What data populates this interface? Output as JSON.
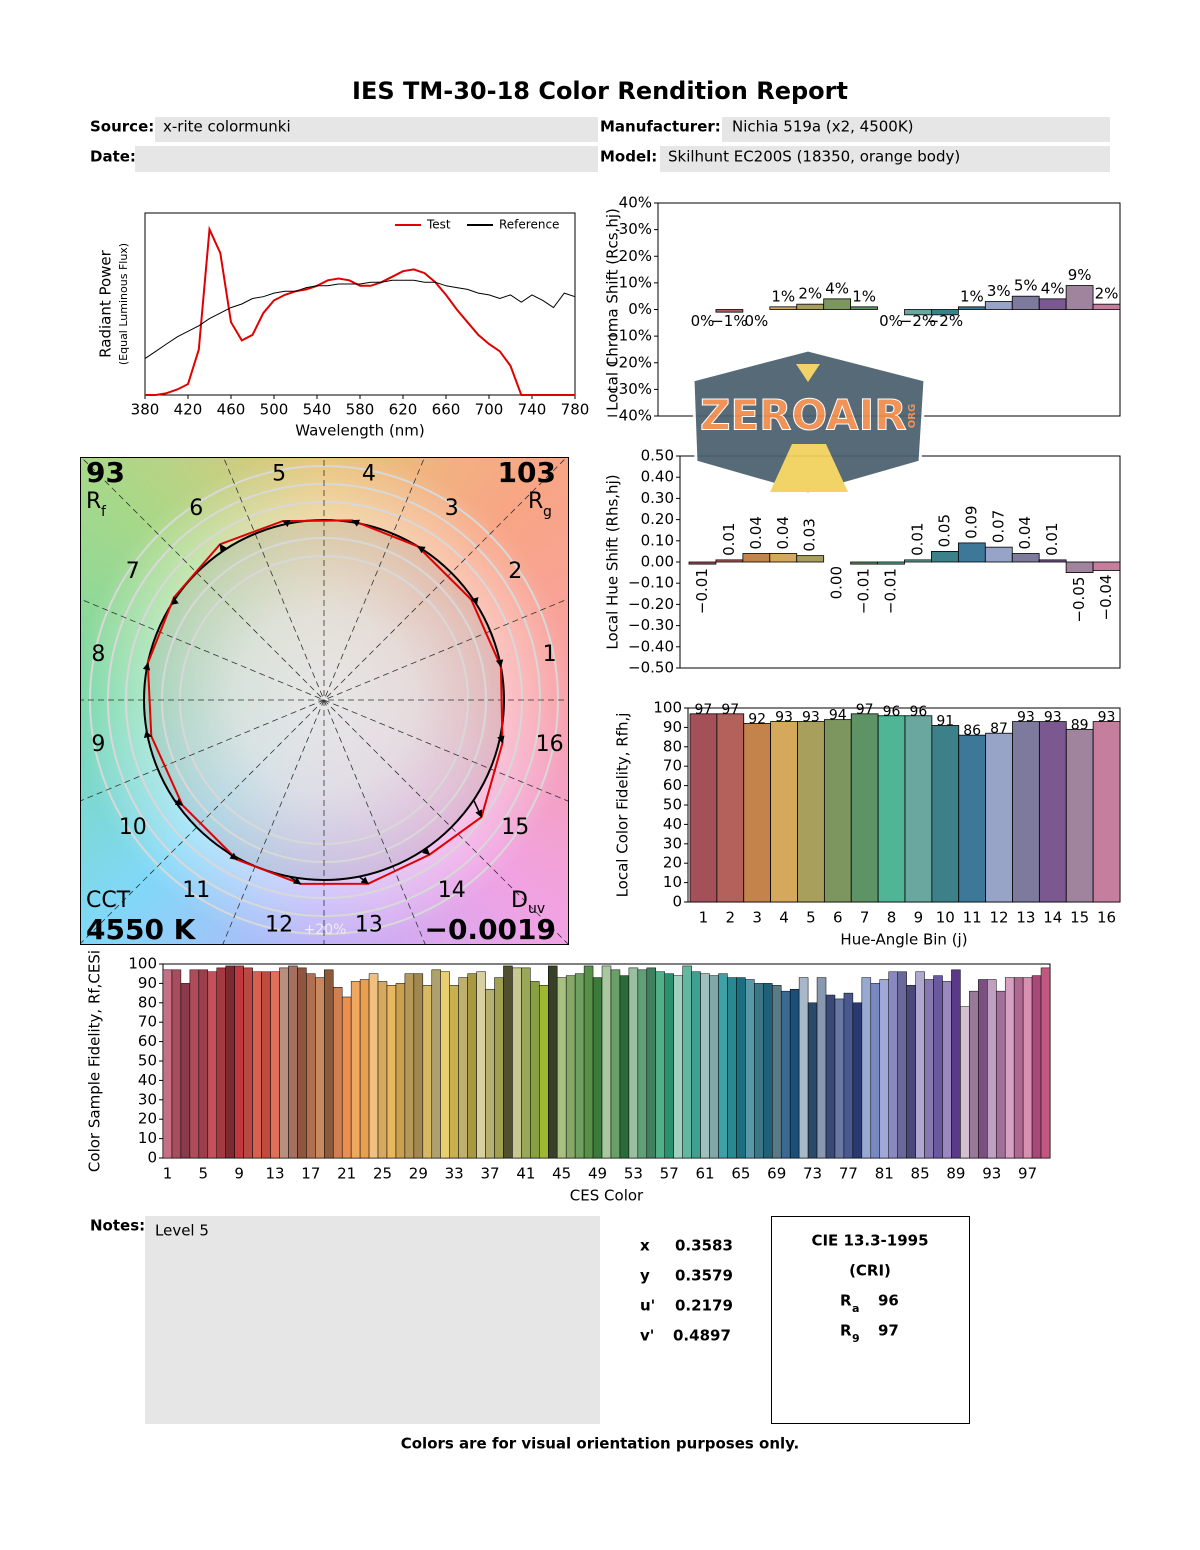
{
  "header": {
    "title": "IES TM-30-18 Color Rendition Report",
    "fields": [
      {
        "label": "Source:",
        "value": "x-rite colormunki"
      },
      {
        "label": "Manufacturer:",
        "value": "Nichia 519a (x2, 4500K)"
      },
      {
        "label": "Date:"
      },
      {
        "label": "Model:",
        "value": "Skilhunt EC200S (18350, orange body)"
      }
    ]
  },
  "chart_data": [
    {
      "type": "line",
      "ylabel": [
        "Radiant Power",
        "(Equal Luminous Flux)"
      ],
      "xlabel": "Wavelength (nm)",
      "x": [
        380,
        390,
        400,
        410,
        420,
        430,
        440,
        450,
        460,
        470,
        480,
        490,
        500,
        510,
        520,
        530,
        540,
        550,
        560,
        570,
        580,
        590,
        600,
        610,
        620,
        630,
        640,
        650,
        660,
        670,
        680,
        690,
        700,
        710,
        720,
        730,
        740,
        750,
        760,
        770,
        780
      ],
      "xlim": [
        380,
        780
      ],
      "xticks": [
        380,
        420,
        460,
        500,
        540,
        580,
        620,
        660,
        700,
        740,
        780
      ],
      "ylim": [
        0,
        1
      ],
      "legend": "upper right",
      "series": [
        {
          "name": "Test",
          "color": "#e00000",
          "values": [
            0,
            0,
            0.01,
            0.03,
            0.06,
            0.25,
            0.91,
            0.78,
            0.4,
            0.3,
            0.33,
            0.45,
            0.52,
            0.55,
            0.57,
            0.58,
            0.6,
            0.63,
            0.64,
            0.63,
            0.6,
            0.6,
            0.62,
            0.65,
            0.68,
            0.69,
            0.67,
            0.62,
            0.55,
            0.47,
            0.4,
            0.33,
            0.28,
            0.24,
            0.16,
            0,
            0,
            0,
            0,
            0,
            0
          ]
        },
        {
          "name": "Reference",
          "color": "#000000",
          "values": [
            0.2,
            0.24,
            0.28,
            0.32,
            0.35,
            0.38,
            0.42,
            0.45,
            0.48,
            0.5,
            0.53,
            0.54,
            0.56,
            0.57,
            0.57,
            0.59,
            0.6,
            0.6,
            0.61,
            0.61,
            0.61,
            0.62,
            0.62,
            0.63,
            0.63,
            0.63,
            0.62,
            0.62,
            0.6,
            0.59,
            0.58,
            0.56,
            0.55,
            0.53,
            0.55,
            0.51,
            0.55,
            0.52,
            0.48,
            0.56,
            0.54
          ]
        }
      ]
    },
    {
      "type": "bar",
      "ylabel": "Local Chroma Shift (Rcs,hj)",
      "ylim": [
        -40,
        40
      ],
      "yticks": [
        {
          "value": 40,
          "label": "40%"
        },
        {
          "value": 30,
          "label": "30%"
        },
        {
          "value": 20,
          "label": "20%"
        },
        {
          "value": 10,
          "label": "10%"
        },
        {
          "value": 0,
          "label": "0%"
        },
        {
          "value": -10,
          "label": "−10%"
        },
        {
          "value": -20,
          "label": "−20%"
        },
        {
          "value": -30,
          "label": "−30%"
        },
        {
          "value": -40,
          "label": "−40%"
        }
      ],
      "values": [
        0,
        -1,
        0,
        1,
        2,
        4,
        1,
        0,
        -2,
        -2,
        1,
        3,
        5,
        4,
        9,
        2
      ],
      "value_labels": [
        "0%",
        "−1%",
        "0%",
        "1%",
        "2%",
        "4%",
        "1%",
        "0%",
        "−2%",
        "−2%",
        "1%",
        "3%",
        "5%",
        "4%",
        "9%",
        "2%"
      ],
      "colors": [
        "#a35059",
        "#b3615a",
        "#c4834b",
        "#d4a95c",
        "#a89f5d",
        "#7d9660",
        "#5e9465",
        "#4fb594",
        "#6aa89f",
        "#3c8189",
        "#3e7899",
        "#98a3c8",
        "#7d7a9e",
        "#7b5890",
        "#a0849e",
        "#c67e9e"
      ]
    },
    {
      "type": "bar",
      "ylabel": "Local Hue Shift (Rhs,hj)",
      "ylim": [
        -0.5,
        0.5
      ],
      "yticks": [
        {
          "value": 0.5,
          "label": "0.50"
        },
        {
          "value": 0.4,
          "label": "0.40"
        },
        {
          "value": 0.3,
          "label": "0.30"
        },
        {
          "value": 0.2,
          "label": "0.20"
        },
        {
          "value": 0.1,
          "label": "0.10"
        },
        {
          "value": 0,
          "label": "0.00"
        },
        {
          "value": -0.1,
          "label": "−0.10"
        },
        {
          "value": -0.2,
          "label": "−0.20"
        },
        {
          "value": -0.3,
          "label": "−0.30"
        },
        {
          "value": -0.4,
          "label": "−0.40"
        },
        {
          "value": -0.5,
          "label": "−0.50"
        }
      ],
      "values": [
        -0.01,
        0.01,
        0.04,
        0.04,
        0.03,
        0,
        -0.01,
        -0.01,
        0.01,
        0.05,
        0.09,
        0.07,
        0.04,
        0.01,
        -0.05,
        -0.04
      ],
      "value_labels": [
        "−0.01",
        "0.01",
        "0.04",
        "0.04",
        "0.03",
        "0.00",
        "−0.01",
        "−0.01",
        "0.01",
        "0.05",
        "0.09",
        "0.07",
        "0.04",
        "0.01",
        "−0.05",
        "−0.04"
      ],
      "colors": [
        "#a35059",
        "#b3615a",
        "#c4834b",
        "#d4a95c",
        "#a89f5d",
        "#7d9660",
        "#5e9465",
        "#4fb594",
        "#6aa89f",
        "#3c8189",
        "#3e7899",
        "#98a3c8",
        "#7d7a9e",
        "#7b5890",
        "#a0849e",
        "#c67e9e"
      ]
    },
    {
      "type": "bar",
      "ylabel": "Local Color Fidelity, Rfh,j",
      "xlabel": "Hue-Angle Bin (j)",
      "categories": [
        "1",
        "2",
        "3",
        "4",
        "5",
        "6",
        "7",
        "8",
        "9",
        "10",
        "11",
        "12",
        "13",
        "14",
        "15",
        "16"
      ],
      "ylim": [
        0,
        100
      ],
      "yticks": [
        0,
        10,
        20,
        30,
        40,
        50,
        60,
        70,
        80,
        90,
        100
      ],
      "values": [
        97,
        97,
        92,
        93,
        93,
        94,
        97,
        96,
        96,
        91,
        86,
        87,
        93,
        93,
        89,
        93
      ],
      "colors": [
        "#a35059",
        "#b3615a",
        "#c4834b",
        "#d4a95c",
        "#a89f5d",
        "#7d9660",
        "#5e9465",
        "#4fb594",
        "#6aa89f",
        "#3c8189",
        "#3e7899",
        "#98a3c8",
        "#7d7a9e",
        "#7b5890",
        "#a0849e",
        "#c67e9e"
      ]
    },
    {
      "type": "bar",
      "ylabel": "Color Sample Fidelity, Rf,CESi",
      "xlabel": "CES Color",
      "categories": [
        "1",
        null,
        null,
        null,
        "5",
        null,
        null,
        null,
        "9",
        null,
        null,
        null,
        "13",
        null,
        null,
        null,
        "17",
        null,
        null,
        null,
        "21",
        null,
        null,
        null,
        "25",
        null,
        null,
        null,
        "29",
        null,
        null,
        null,
        "33",
        null,
        null,
        null,
        "37",
        null,
        null,
        null,
        "41",
        null,
        null,
        null,
        "45",
        null,
        null,
        null,
        "49",
        null,
        null,
        null,
        "53",
        null,
        null,
        null,
        "57",
        null,
        null,
        null,
        "61",
        null,
        null,
        null,
        "65",
        null,
        null,
        null,
        "69",
        null,
        null,
        null,
        "73",
        null,
        null,
        null,
        "77",
        null,
        null,
        null,
        "81",
        null,
        null,
        null,
        "85",
        null,
        null,
        null,
        "89",
        null,
        null,
        null,
        "93",
        null,
        null,
        null,
        "97",
        null,
        null
      ],
      "ylim": [
        0,
        100
      ],
      "yticks": [
        0,
        10,
        20,
        30,
        40,
        50,
        60,
        70,
        80,
        90,
        100
      ],
      "values": [
        97,
        97,
        90,
        97,
        97,
        96,
        98,
        99,
        99,
        98,
        96,
        96,
        96,
        98,
        99,
        98,
        95,
        93,
        97,
        88,
        83,
        91,
        92,
        95,
        91,
        89,
        90,
        95,
        95,
        89,
        97,
        96,
        89,
        93,
        95,
        96,
        87,
        93,
        99,
        98,
        98,
        91,
        89,
        99,
        93,
        94,
        95,
        99,
        93,
        99,
        97,
        94,
        98,
        97,
        98,
        96,
        95,
        94,
        99,
        96,
        95,
        94,
        95,
        93,
        93,
        92,
        90,
        90,
        89,
        86,
        87,
        93,
        80,
        93,
        84,
        82,
        85,
        80,
        93,
        90,
        92,
        96,
        96,
        89,
        96,
        92,
        94,
        91,
        97,
        78,
        86,
        92,
        92,
        86,
        93,
        93,
        93,
        94,
        98
      ],
      "colors": [
        "#c96f85",
        "#a84d5e",
        "#8a3a4a",
        "#b04c5a",
        "#9c3f4c",
        "#c4505b",
        "#a33a42",
        "#7a2a30",
        "#c0393f",
        "#b84a45",
        "#d8604f",
        "#c04a3c",
        "#e0705a",
        "#b89080",
        "#a57060",
        "#90553e",
        "#b07050",
        "#c88860",
        "#8a5a3a",
        "#d08050",
        "#e89050",
        "#f0a860",
        "#e8a050",
        "#f0c080",
        "#d8a860",
        "#e8b860",
        "#c8a050",
        "#b89858",
        "#a08850",
        "#d8b860",
        "#b0a070",
        "#e8d070",
        "#c8b050",
        "#c0b070",
        "#a89840",
        "#d8d0a0",
        "#b8b070",
        "#a0a050",
        "#505030",
        "#c8c890",
        "#98a858",
        "#88a040",
        "#a0b830",
        "#384028",
        "#a8c080",
        "#88a868",
        "#70a060",
        "#589048",
        "#3a7a3a",
        "#a8c8a0",
        "#68a068",
        "#2a6a38",
        "#98c0a0",
        "#60a078",
        "#408060",
        "#50b088",
        "#2a9070",
        "#a0d0c0",
        "#60b8a0",
        "#40a090",
        "#a0c0c0",
        "#80a8a8",
        "#40a0a8",
        "#2a8890",
        "#1a7080",
        "#5898a8",
        "#3a7888",
        "#206078",
        "#5a7a88",
        "#3a6a90",
        "#1a5078",
        "#a8b8c8",
        "#2a4a6a",
        "#8898b0",
        "#3a4a78",
        "#6878a0",
        "#4a5890",
        "#2a3a70",
        "#98a8d0",
        "#7888c0",
        "#a0a8d8",
        "#8a88c0",
        "#6a6898",
        "#4a4878",
        "#b0a8d0",
        "#8878b0",
        "#6a58a0",
        "#9a88c0",
        "#5a3a88",
        "#d0c0d0",
        "#9a7898",
        "#7a5080",
        "#c0a0c0",
        "#a07098",
        "#d8a0c0",
        "#b06890",
        "#d890b0",
        "#a84878",
        "#c05880"
      ]
    },
    {
      "type": "vector",
      "bins": [
        "1",
        "2",
        "3",
        "4",
        "5",
        "6",
        "7",
        "8",
        "9",
        "10",
        "11",
        "12",
        "13",
        "14",
        "15",
        "16"
      ],
      "rf": {
        "label": "R",
        "subscript": "f",
        "value": 93
      },
      "rg": {
        "label": "R",
        "subscript": "g",
        "value": 103
      },
      "cct": {
        "label": "CCT",
        "value": "4550 K"
      },
      "duv": {
        "label": "D",
        "subscript": "uv",
        "value": "−0.0019"
      },
      "scale_label": "+20%"
    }
  ],
  "watermark": {
    "text": "ZEROAIR",
    "sub": "ORG"
  },
  "notes": {
    "label": "Notes:",
    "text": "Level 5"
  },
  "chromaticity": [
    {
      "label": "x",
      "value": 0.3583
    },
    {
      "label": "y",
      "value": 0.3579
    },
    {
      "label": "u'",
      "value": 0.2179
    },
    {
      "label": "v'",
      "value": 0.4897
    }
  ],
  "cri": {
    "title": "CIE 13.3-1995",
    "subtitle": "(CRI)",
    "rows": [
      {
        "label": "R",
        "subscript": "a",
        "value": 96
      },
      {
        "label": "R",
        "subscript": "9",
        "value": 97
      }
    ]
  },
  "footer": "Colors are for visual orientation purposes only."
}
